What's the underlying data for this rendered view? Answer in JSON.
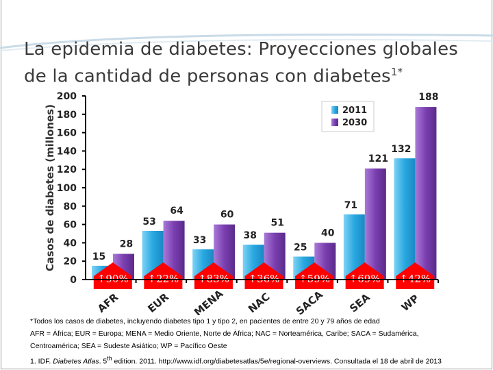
{
  "title": {
    "line1": "La epidemia de diabetes: Proyecciones globales",
    "line2": "de la cantidad de personas con diabetes",
    "sup": "1*"
  },
  "chart_data": {
    "type": "bar",
    "ylabel": "Casos de diabetes (millones)",
    "ylim": [
      0,
      200
    ],
    "yticks": [
      0,
      20,
      40,
      60,
      80,
      100,
      120,
      140,
      160,
      180,
      200
    ],
    "categories": [
      "AFR",
      "EUR",
      "MENA",
      "NAC",
      "SACA",
      "SEA",
      "WP"
    ],
    "series": [
      {
        "name": "2011",
        "values": [
          15,
          53,
          33,
          38,
          25,
          71,
          132
        ],
        "color": "#29a8e0"
      },
      {
        "name": "2030",
        "values": [
          28,
          64,
          60,
          51,
          40,
          121,
          188
        ],
        "color": "#7b3fb0"
      }
    ],
    "increases": [
      "↑90%",
      "↑22%",
      "↑83%",
      "↑36%",
      "↑59%",
      "↑69%",
      "↑42%"
    ],
    "increase_color": "#ff0000",
    "legend": "top-right",
    "grid": false
  },
  "notes": {
    "line1": "*Todos los casos de diabetes, incluyendo diabetes tipo 1 y tipo 2, en pacientes de entre 20 y 79 años de edad",
    "line2": "AFR = África; EUR = Europa; MENA = Medio Oriente, Norte de África; NAC = Norteamérica, Caribe; SACA = Sudamérica,",
    "line3": "Centroamérica; SEA = Sudeste Asiático; WP = Pacífico Oeste"
  },
  "reference": {
    "prefix": "1. IDF. ",
    "italic": "Diabetes Atlas",
    "mid": ". 5",
    "sup": "th",
    "rest": " edition. 2011. http://www.idf.org/diabetesatlas/5e/regional-overviews. Consultada el 18 de abril de 2013"
  }
}
